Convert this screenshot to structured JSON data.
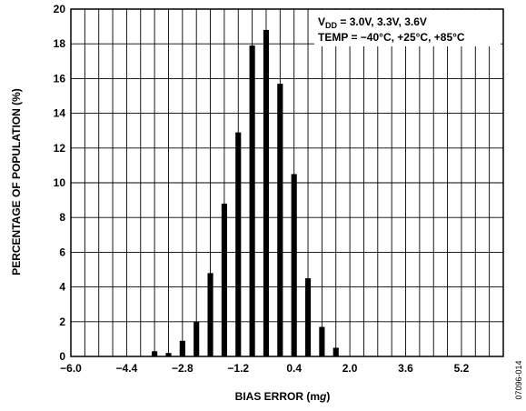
{
  "chart_data": {
    "type": "bar",
    "title": "",
    "xlabel": "BIAS ERROR (mg)",
    "xlabel_parts": {
      "pre": "BIAS ERROR (m",
      "italic": "g",
      "post": ")"
    },
    "ylabel": "PERCENTAGE OF POPULATION (%)",
    "xlim": [
      -6.0,
      6.4
    ],
    "ylim": [
      0,
      20
    ],
    "x_ticks": [
      "−6.0",
      "−4.4",
      "−2.8",
      "−1.2",
      "0.4",
      "2.0",
      "3.6",
      "5.2"
    ],
    "x_tick_values": [
      -6.0,
      -4.4,
      -2.8,
      -1.2,
      0.4,
      2.0,
      3.6,
      5.2
    ],
    "y_ticks": [
      "0",
      "2",
      "4",
      "6",
      "8",
      "10",
      "12",
      "14",
      "16",
      "18",
      "20"
    ],
    "y_tick_values": [
      0,
      2,
      4,
      6,
      8,
      10,
      12,
      14,
      16,
      18,
      20
    ],
    "grid": true,
    "bar_width": 0.16,
    "x": [
      -3.6,
      -3.2,
      -2.8,
      -2.4,
      -2.0,
      -1.6,
      -1.2,
      -0.8,
      -0.4,
      0.0,
      0.4,
      0.8,
      1.2,
      1.6,
      2.0
    ],
    "values": [
      0.3,
      0.2,
      0.9,
      2.0,
      4.8,
      8.8,
      12.9,
      17.9,
      18.8,
      15.7,
      10.5,
      4.5,
      1.7,
      0.5,
      0
    ],
    "series": [
      {
        "values": [
          0.3,
          0.2,
          0.9,
          2.0,
          4.8,
          8.8,
          12.9,
          17.9,
          18.8,
          15.7,
          10.5,
          4.5,
          1.7,
          0.5,
          0
        ]
      }
    ],
    "annotation": {
      "line1_prefix": "V",
      "line1_sub": "DD",
      "line1_rest": " = 3.0V, 3.3V, 3.6V",
      "line2": "TEMP = −40°C, +25°C, +85°C"
    },
    "bar_color": "#000000",
    "grid_color": "#000000"
  },
  "figure_id": "07096-014"
}
